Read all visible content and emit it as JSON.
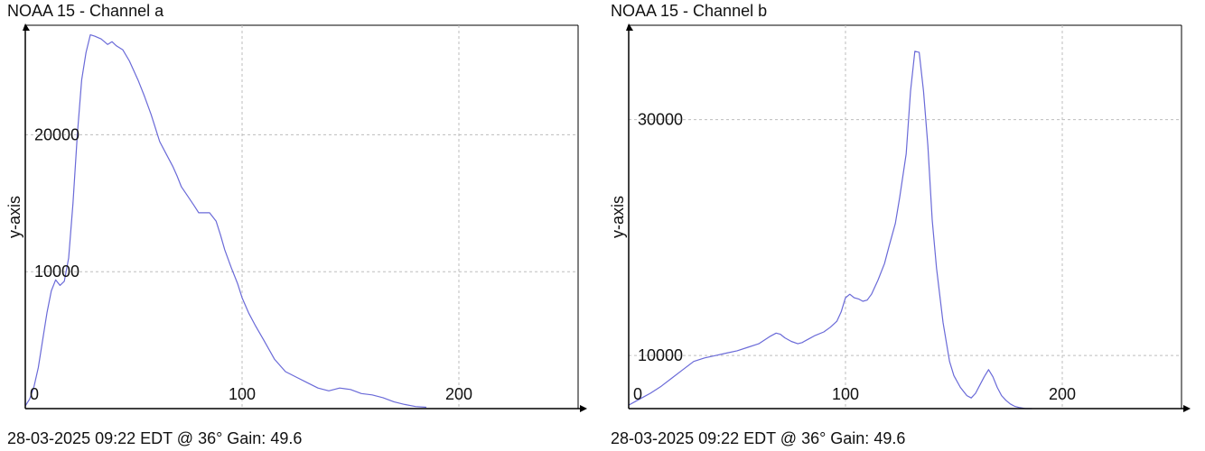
{
  "charts": [
    {
      "title": "NOAA 15 - Channel a",
      "footer": "28-03-2025 09:22 EDT @ 36° Gain: 49.6"
    },
    {
      "title": "NOAA 15 - Channel b",
      "footer": "28-03-2025 09:22 EDT @ 36° Gain: 49.6"
    }
  ],
  "colors": {
    "line": "#6a6ad8",
    "axis": "#000000",
    "grid": "#bdbdbd",
    "background": "#ffffff"
  },
  "chart_data": [
    {
      "type": "line",
      "title": "NOAA 15 - Channel a",
      "ylabel": "y-axis",
      "xlabel": "",
      "xlim": [
        0,
        255
      ],
      "ylim": [
        0,
        28000
      ],
      "xticks": [
        0,
        100,
        200
      ],
      "xtick_labels": [
        "0",
        "100",
        "200"
      ],
      "yticks": [
        10000,
        20000
      ],
      "ytick_labels": [
        "10000",
        "20000"
      ],
      "grid": true,
      "x": [
        0,
        2,
        4,
        6,
        8,
        10,
        12,
        14,
        16,
        18,
        20,
        22,
        24,
        26,
        28,
        30,
        32,
        35,
        38,
        40,
        42,
        45,
        48,
        50,
        52,
        55,
        58,
        60,
        62,
        65,
        68,
        70,
        72,
        75,
        78,
        80,
        85,
        88,
        90,
        92,
        95,
        98,
        100,
        103,
        106,
        110,
        115,
        120,
        125,
        130,
        135,
        140,
        145,
        150,
        155,
        160,
        165,
        170,
        175,
        180,
        185
      ],
      "y": [
        200,
        700,
        1600,
        3000,
        5000,
        7000,
        8600,
        9400,
        9000,
        9300,
        11000,
        15000,
        20000,
        24000,
        26000,
        27300,
        27200,
        27000,
        26600,
        26800,
        26500,
        26200,
        25400,
        24700,
        24000,
        22800,
        21500,
        20500,
        19500,
        18600,
        17700,
        17000,
        16200,
        15500,
        14800,
        14300,
        14300,
        13700,
        12700,
        11600,
        10300,
        9100,
        8100,
        7000,
        6100,
        5000,
        3600,
        2700,
        2300,
        1900,
        1500,
        1300,
        1500,
        1400,
        1100,
        1000,
        800,
        500,
        300,
        150,
        100
      ]
    },
    {
      "type": "line",
      "title": "NOAA 15 - Channel b",
      "ylabel": "y-axis",
      "xlabel": "",
      "xlim": [
        0,
        255
      ],
      "ylim": [
        5500,
        38000
      ],
      "xticks": [
        0,
        100,
        200
      ],
      "xtick_labels": [
        "0",
        "100",
        "200"
      ],
      "yticks": [
        10000,
        30000
      ],
      "ytick_labels": [
        "10000",
        "30000"
      ],
      "grid": true,
      "x": [
        0,
        3,
        6,
        10,
        15,
        20,
        25,
        30,
        35,
        40,
        45,
        50,
        55,
        60,
        65,
        68,
        70,
        72,
        75,
        78,
        80,
        83,
        86,
        90,
        93,
        96,
        98,
        100,
        102,
        104,
        106,
        108,
        110,
        112,
        115,
        118,
        120,
        123,
        125,
        128,
        130,
        132,
        134,
        136,
        138,
        140,
        142,
        145,
        148,
        150,
        153,
        156,
        158,
        160,
        162,
        164,
        166,
        168,
        170,
        172,
        174,
        176,
        178,
        180,
        183,
        186
      ],
      "y": [
        5800,
        6100,
        6400,
        6800,
        7400,
        8100,
        8800,
        9500,
        9800,
        10000,
        10200,
        10400,
        10700,
        11000,
        11600,
        11900,
        11800,
        11500,
        11200,
        11000,
        11100,
        11400,
        11700,
        12000,
        12400,
        12900,
        13700,
        14900,
        15200,
        14900,
        14800,
        14600,
        14700,
        15200,
        16400,
        17800,
        19200,
        21200,
        23400,
        27100,
        32400,
        35800,
        35700,
        32400,
        27800,
        21500,
        17400,
        12800,
        9500,
        8300,
        7300,
        6600,
        6400,
        6800,
        7500,
        8200,
        8800,
        8200,
        7300,
        6600,
        6200,
        5900,
        5700,
        5600,
        5500,
        5500
      ]
    }
  ]
}
